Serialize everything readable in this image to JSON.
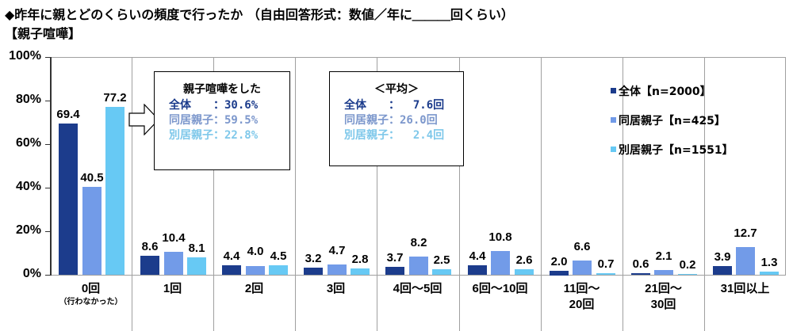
{
  "title": "◆昨年に親とどのくらいの頻度で行ったか （自由回答形式：数値／年に＿＿＿回くらい）",
  "subtitle": "【親子喧嘩】",
  "colors": {
    "all": "#1c3c8c",
    "cohabiting": "#729be8",
    "separate": "#67c9f4"
  },
  "yaxis": {
    "ticks": [
      "100%",
      "80%",
      "60%",
      "40%",
      "20%",
      "0%"
    ]
  },
  "legend": [
    {
      "label": "全体【n=2000】",
      "color": "#1c3c8c"
    },
    {
      "label": "同居親子【n=425】",
      "color": "#729be8"
    },
    {
      "label": "別居親子【n=1551】",
      "color": "#67c9f4"
    }
  ],
  "box1": {
    "heading": "親子喧嘩をした",
    "rows": [
      {
        "text": "全体　　：30.6%",
        "color": "#1c3c8c"
      },
      {
        "text": "同居親子：59.5%",
        "color": "#7c97cc"
      },
      {
        "text": "別居親子：22.8%",
        "color": "#7fc8ea"
      }
    ]
  },
  "box2": {
    "heading": "＜平均＞",
    "rows": [
      {
        "text": "全体　　：  7.6回",
        "color": "#1c3c8c"
      },
      {
        "text": "同居親子：26.0回",
        "color": "#7c97cc"
      },
      {
        "text": "別居親子：  2.4回",
        "color": "#7fc8ea"
      }
    ]
  },
  "categories": [
    {
      "line1": "0回",
      "line2": "（行わなかった）",
      "small": true
    },
    {
      "line1": "1回",
      "line2": ""
    },
    {
      "line1": "2回",
      "line2": ""
    },
    {
      "line1": "3回",
      "line2": ""
    },
    {
      "line1": "4回～5回",
      "line2": ""
    },
    {
      "line1": "6回～10回",
      "line2": ""
    },
    {
      "line1": "11回～",
      "line2": "20回"
    },
    {
      "line1": "21回～",
      "line2": "30回"
    },
    {
      "line1": "31回以上",
      "line2": ""
    }
  ],
  "chart_data": {
    "type": "bar",
    "title": "◆昨年に親とどのくらいの頻度で行ったか （自由回答形式：数値／年に＿＿＿回くらい） 【親子喧嘩】",
    "categories": [
      "0回（行わなかった）",
      "1回",
      "2回",
      "3回",
      "4回～5回",
      "6回～10回",
      "11回～20回",
      "21回～30回",
      "31回以上"
    ],
    "series": [
      {
        "name": "全体【n=2000】",
        "values": [
          69.4,
          8.6,
          4.4,
          3.2,
          3.7,
          4.4,
          2.0,
          0.6,
          3.9
        ]
      },
      {
        "name": "同居親子【n=425】",
        "values": [
          40.5,
          10.4,
          4.0,
          4.7,
          8.2,
          10.8,
          6.6,
          2.1,
          12.7
        ]
      },
      {
        "name": "別居親子【n=1551】",
        "values": [
          77.2,
          8.1,
          4.5,
          2.8,
          2.5,
          2.6,
          0.7,
          0.2,
          1.3
        ]
      }
    ],
    "xlabel": "",
    "ylabel": "",
    "ylim": [
      0,
      100
    ],
    "yticks": [
      "0%",
      "20%",
      "40%",
      "60%",
      "80%",
      "100%"
    ],
    "legend_position": "right",
    "annotations": [
      "親子喧嘩をした 全体：30.6% 同居親子：59.5% 別居親子：22.8%",
      "＜平均＞ 全体：7.6回 同居親子：26.0回 別居親子：2.4回"
    ]
  }
}
